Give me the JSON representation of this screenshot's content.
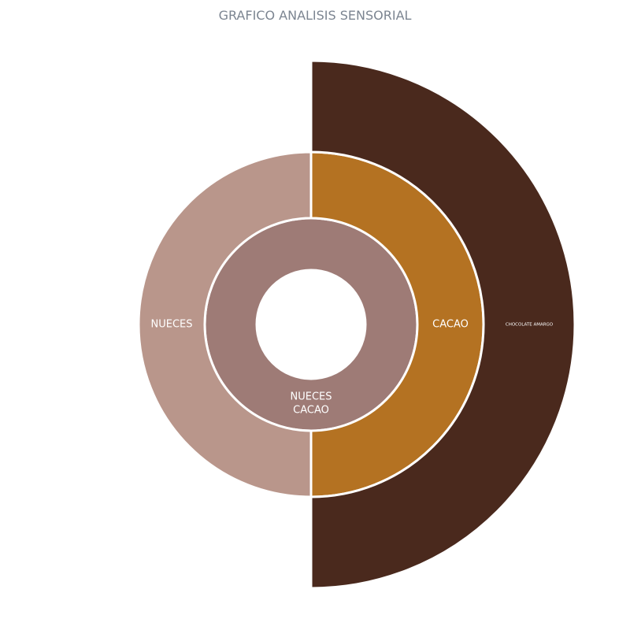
{
  "chart_data": {
    "type": "sunburst",
    "title": "GRAFICO ANALISIS SENSORIAL",
    "rings": [
      {
        "level": 1,
        "segments": [
          {
            "label_lines": [
              "NUECES",
              "CACAO"
            ],
            "start_deg": 0,
            "end_deg": 360,
            "color": "#9e7b76"
          }
        ]
      },
      {
        "level": 2,
        "segments": [
          {
            "label": "CACAO",
            "start_deg": 0,
            "end_deg": 180,
            "color": "#b47222"
          },
          {
            "label": "NUECES",
            "start_deg": 180,
            "end_deg": 360,
            "color": "#b9968b"
          }
        ]
      },
      {
        "level": 3,
        "segments": [
          {
            "label": "CHOCOLATE AMARGO",
            "start_deg": 0,
            "end_deg": 180,
            "color": "#4a291d"
          }
        ]
      }
    ]
  }
}
